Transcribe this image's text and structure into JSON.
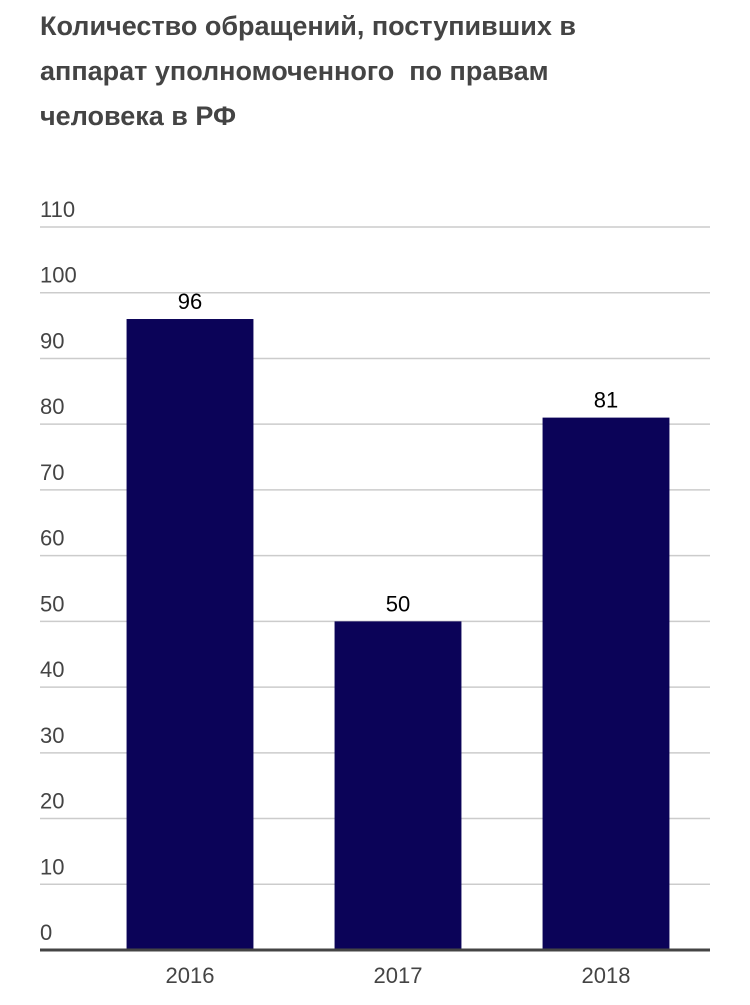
{
  "chart_data": {
    "type": "bar",
    "title": "Количество обращений, поступивших в аппарат уполномоченного  по правам человека в РФ",
    "categories": [
      "2016",
      "2017",
      "2018"
    ],
    "values": [
      96,
      50,
      81
    ],
    "color": "#0b0358",
    "ylim": [
      0,
      110
    ],
    "yticks": [
      0,
      10,
      20,
      30,
      40,
      50,
      60,
      70,
      80,
      90,
      100,
      110
    ],
    "grid": true
  }
}
